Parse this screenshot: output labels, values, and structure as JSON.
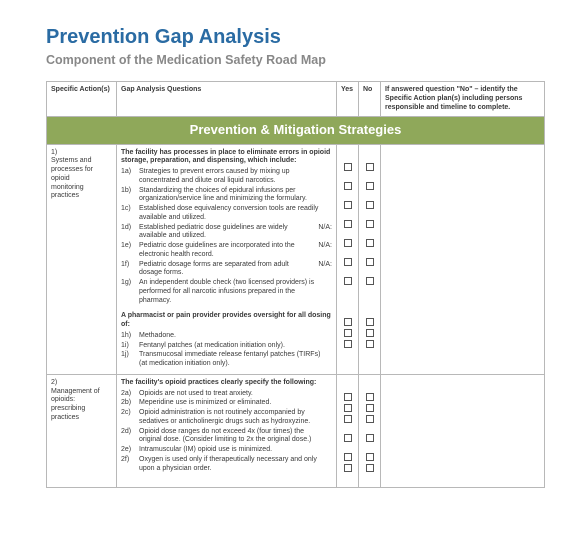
{
  "title": "Prevention Gap Analysis",
  "subtitle": "Component of the Medication Safety Road Map",
  "colors": {
    "title": "#2a6ba3",
    "subtitle": "#888888",
    "section_bg": "#8fa85a",
    "section_fg": "#ffffff",
    "border": "#b8b8b8",
    "text": "#3a3a3a"
  },
  "headers": {
    "actions": "Specific Action(s)",
    "questions": "Gap Analysis Questions",
    "yes": "Yes",
    "no": "No",
    "identify": "If answered question \"No\" – identify the Specific Action plan(s) including persons responsible and timeline to complete."
  },
  "section_title": "Prevention & Mitigation Strategies",
  "rows": [
    {
      "num": "1)",
      "action": "Systems and processes for opioid monitoring practices",
      "blocks": [
        {
          "lead": "The facility has processes in place to eliminate errors in opioid storage, preparation, and dispensing, which include:",
          "items": [
            {
              "id": "1a)",
              "text": "Strategies to prevent errors caused by mixing up concentrated and dilute oral liquid narcotics.",
              "na": false,
              "box": true
            },
            {
              "id": "1b)",
              "text": "Standardizing the choices of epidural infusions per organization/service line and minimizing the formulary.",
              "na": false,
              "box": true
            },
            {
              "id": "1c)",
              "text": "Established dose equivalency conversion tools are readily available and utilized.",
              "na": false,
              "box": true
            },
            {
              "id": "1d)",
              "text": "Established pediatric dose guidelines are widely available and utilized.",
              "na": true,
              "box": true
            },
            {
              "id": "1e)",
              "text": "Pediatric dose guidelines are incorporated into the electronic health record.",
              "na": true,
              "box": true
            },
            {
              "id": "1f)",
              "text": "Pediatric dosage forms are separated from adult dosage forms.",
              "na": true,
              "box": true
            },
            {
              "id": "1g)",
              "text": "An independent double check (two licensed providers) is performed for all narcotic infusions prepared in the pharmacy.",
              "na": false,
              "box": true
            }
          ]
        },
        {
          "lead": "A pharmacist or pain provider provides oversight for all dosing of:",
          "items": [
            {
              "id": "1h)",
              "text": "Methadone.",
              "na": false,
              "box": true
            },
            {
              "id": "1i)",
              "text": "Fentanyl patches (at medication initiation only).",
              "na": false,
              "box": true
            },
            {
              "id": "1j)",
              "text": "Transmucosal immediate release fentanyl patches (TIRFs) (at medication initiation only).",
              "na": false,
              "box": true
            }
          ]
        }
      ]
    },
    {
      "num": "2)",
      "action": "Management of opioids: prescribing practices",
      "blocks": [
        {
          "lead": "The facility's opioid practices clearly specify the following:",
          "items": [
            {
              "id": "2a)",
              "text": "Opioids are not used to treat anxiety.",
              "na": false,
              "box": true
            },
            {
              "id": "2b)",
              "text": "Meperidine use is minimized or eliminated.",
              "na": false,
              "box": true
            },
            {
              "id": "2c)",
              "text": "Opioid administration is not routinely accompanied by sedatives or anticholinergic drugs such as hydroxyzine.",
              "na": false,
              "box": true
            },
            {
              "id": "2d)",
              "text": "Opioid dose ranges do not exceed 4x (four times) the original dose. (Consider limiting to 2x the original dose.)",
              "na": false,
              "box": true
            },
            {
              "id": "2e)",
              "text": "Intramuscular (IM) opioid use is minimized.",
              "na": false,
              "box": true
            },
            {
              "id": "2f)",
              "text": "Oxygen is used only if therapeutically necessary and only upon a physician order.",
              "na": false,
              "box": true
            }
          ]
        }
      ]
    }
  ],
  "na_label": "N/A:"
}
